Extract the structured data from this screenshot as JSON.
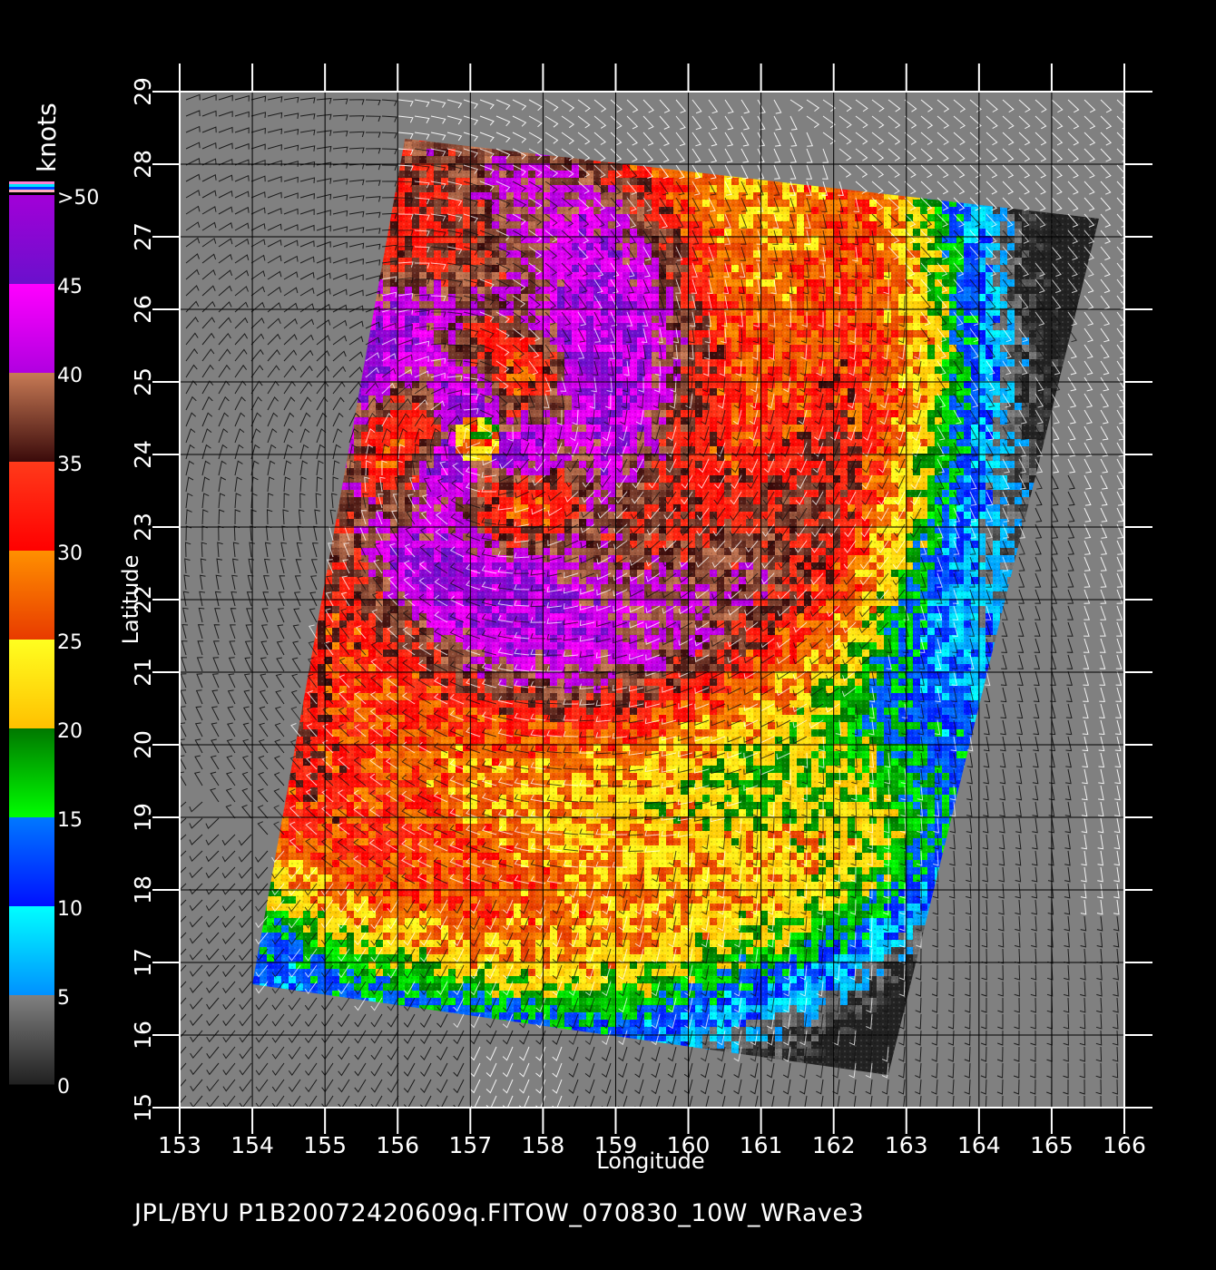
{
  "map": {
    "x_label": "Longitude",
    "y_label": "Latitude",
    "lon_range": [
      153,
      166
    ],
    "lat_range": [
      15,
      29
    ],
    "lon_ticks": [
      "153",
      "154",
      "155",
      "156",
      "157",
      "158",
      "159",
      "160",
      "161",
      "162",
      "163",
      "164",
      "165",
      "166"
    ],
    "lat_ticks": [
      "15",
      "16",
      "17",
      "18",
      "19",
      "20",
      "21",
      "22",
      "23",
      "24",
      "25",
      "26",
      "27",
      "28",
      "29"
    ],
    "land_color": "#808080",
    "grid_color": "#000000",
    "swath_corners_lonlat": [
      [
        156.1,
        28.35
      ],
      [
        165.65,
        27.25
      ],
      [
        162.75,
        15.45
      ],
      [
        154.0,
        16.7
      ]
    ],
    "storm_center_lonlat": [
      157.1,
      24.2
    ]
  },
  "colorbar": {
    "unit_label": "knots",
    "labels": [
      ">50",
      "45",
      "40",
      "35",
      "30",
      "25",
      "20",
      "15",
      "10",
      "5",
      "0"
    ],
    "segments": [
      {
        "min": 45,
        "max": 50,
        "from": "#6a10cc",
        "to": "#a200d8"
      },
      {
        "min": 40,
        "max": 45,
        "from": "#b000e0",
        "to": "#ff00ff"
      },
      {
        "min": 35,
        "max": 40,
        "from": "#3a0a0a",
        "to": "#c77a55"
      },
      {
        "min": 30,
        "max": 35,
        "from": "#ff0000",
        "to": "#ff3a1a"
      },
      {
        "min": 25,
        "max": 30,
        "from": "#e83a00",
        "to": "#ff9000"
      },
      {
        "min": 20,
        "max": 25,
        "from": "#ffc000",
        "to": "#ffff20"
      },
      {
        "min": 15,
        "max": 20,
        "from": "#00ff00",
        "to": "#007800"
      },
      {
        "min": 10,
        "max": 15,
        "from": "#0010ff",
        "to": "#0078ff"
      },
      {
        "min": 5,
        "max": 10,
        "from": "#0090ff",
        "to": "#00ffff"
      },
      {
        "min": 0,
        "max": 5,
        "from": "#202020",
        "to": "#808080"
      }
    ]
  },
  "footer": "JPL/BYU  P1B20072420609q.FITOW_070830_10W_WRave3"
}
